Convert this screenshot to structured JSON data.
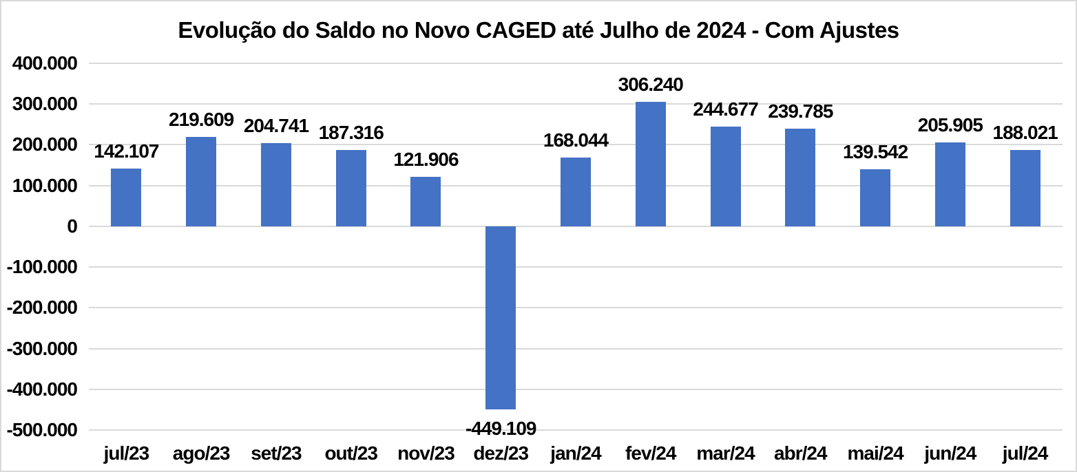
{
  "chart_data": {
    "type": "bar",
    "title": "Evolução do Saldo no Novo CAGED até Julho de 2024 - Com Ajustes",
    "categories": [
      "jul/23",
      "ago/23",
      "set/23",
      "out/23",
      "nov/23",
      "dez/23",
      "jan/24",
      "fev/24",
      "mar/24",
      "abr/24",
      "mai/24",
      "jun/24",
      "jul/24"
    ],
    "values": [
      142107,
      219609,
      204741,
      187316,
      121906,
      -449109,
      168044,
      306240,
      244677,
      239785,
      139542,
      205905,
      188021
    ],
    "data_labels": [
      "142.107",
      "219.609",
      "204.741",
      "187.316",
      "121.906",
      "-449.109",
      "168.044",
      "306.240",
      "244.677",
      "239.785",
      "139.542",
      "205.905",
      "188.021"
    ],
    "xlabel": "",
    "ylabel": "",
    "ylim": [
      -500000,
      400000
    ],
    "ytick_step": 100000,
    "ytick_labels": [
      "400.000",
      "300.000",
      "200.000",
      "100.000",
      "0",
      "-100.000",
      "-200.000",
      "-300.000",
      "-400.000",
      "-500.000"
    ],
    "grid": true,
    "legend": false,
    "data_label_position": "outside-end",
    "colors": {
      "bar": "#4472C4",
      "gridline": "#d9d9d9",
      "text": "#000000",
      "background": "#ffffff",
      "frame_border": "#d9d9d9"
    }
  }
}
